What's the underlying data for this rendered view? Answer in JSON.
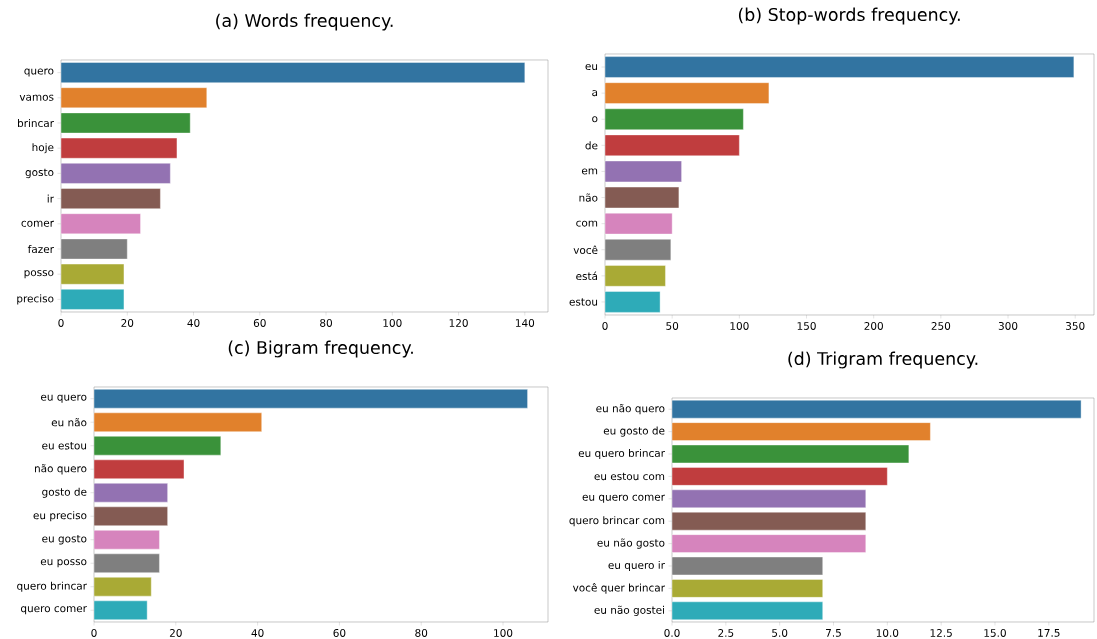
{
  "chart_data": [
    {
      "type": "bar",
      "orientation": "horizontal",
      "title": "(a) Words frequency.",
      "categories": [
        "quero",
        "vamos",
        "brincar",
        "hoje",
        "gosto",
        "ir",
        "comer",
        "fazer",
        "posso",
        "preciso"
      ],
      "values": [
        140,
        44,
        39,
        35,
        33,
        30,
        24,
        20,
        19,
        19
      ],
      "colors": [
        "#3274a1",
        "#e1812c",
        "#3a923a",
        "#c03d3e",
        "#9372b2",
        "#845b53",
        "#d684bd",
        "#7f7f7f",
        "#a9aa35",
        "#2eabb8"
      ],
      "xlim": [
        0,
        147
      ],
      "xticks": [
        0,
        20,
        40,
        60,
        80,
        100,
        120,
        140
      ]
    },
    {
      "type": "bar",
      "orientation": "horizontal",
      "title": "(b) Stop-words frequency.",
      "categories": [
        "eu",
        "a",
        "o",
        "de",
        "em",
        "não",
        "com",
        "você",
        "está",
        "estou"
      ],
      "values": [
        349,
        122,
        103,
        100,
        57,
        55,
        50,
        49,
        45,
        41
      ],
      "colors": [
        "#3274a1",
        "#e1812c",
        "#3a923a",
        "#c03d3e",
        "#9372b2",
        "#845b53",
        "#d684bd",
        "#7f7f7f",
        "#a9aa35",
        "#2eabb8"
      ],
      "xlim": [
        0,
        364
      ],
      "xticks": [
        0,
        50,
        100,
        150,
        200,
        250,
        300,
        350
      ]
    },
    {
      "type": "bar",
      "orientation": "horizontal",
      "title": "(c) Bigram frequency.",
      "categories": [
        "eu quero",
        "eu não",
        "eu estou",
        "não quero",
        "gosto de",
        "eu preciso",
        "eu gosto",
        "eu posso",
        "quero brincar",
        "quero comer"
      ],
      "values": [
        106,
        41,
        31,
        22,
        18,
        18,
        16,
        16,
        14,
        13
      ],
      "colors": [
        "#3274a1",
        "#e1812c",
        "#3a923a",
        "#c03d3e",
        "#9372b2",
        "#845b53",
        "#d684bd",
        "#7f7f7f",
        "#a9aa35",
        "#2eabb8"
      ],
      "xlim": [
        0,
        111
      ],
      "xticks": [
        0,
        20,
        40,
        60,
        80,
        100
      ]
    },
    {
      "type": "bar",
      "orientation": "horizontal",
      "title": "(d) Trigram frequency.",
      "categories": [
        "eu não quero",
        "eu gosto de",
        "eu quero brincar",
        "eu estou com",
        "eu quero comer",
        "quero brincar com",
        "eu não gosto",
        "eu quero ir",
        "você quer brincar",
        "eu não gostei"
      ],
      "values": [
        19,
        12,
        11,
        10,
        9,
        9,
        9,
        7,
        7,
        7
      ],
      "colors": [
        "#3274a1",
        "#e1812c",
        "#3a923a",
        "#c03d3e",
        "#9372b2",
        "#845b53",
        "#d684bd",
        "#7f7f7f",
        "#a9aa35",
        "#2eabb8"
      ],
      "xlim": [
        0,
        19.6
      ],
      "xticks": [
        {
          "value": 0,
          "label": "0.0"
        },
        {
          "value": 2.5,
          "label": "2.5"
        },
        {
          "value": 5,
          "label": "5.0"
        },
        {
          "value": 7.5,
          "label": "7.5"
        },
        {
          "value": 10,
          "label": "10.0"
        },
        {
          "value": 12.5,
          "label": "12.5"
        },
        {
          "value": 15,
          "label": "15.0"
        },
        {
          "value": 17.5,
          "label": "17.5"
        }
      ]
    }
  ]
}
